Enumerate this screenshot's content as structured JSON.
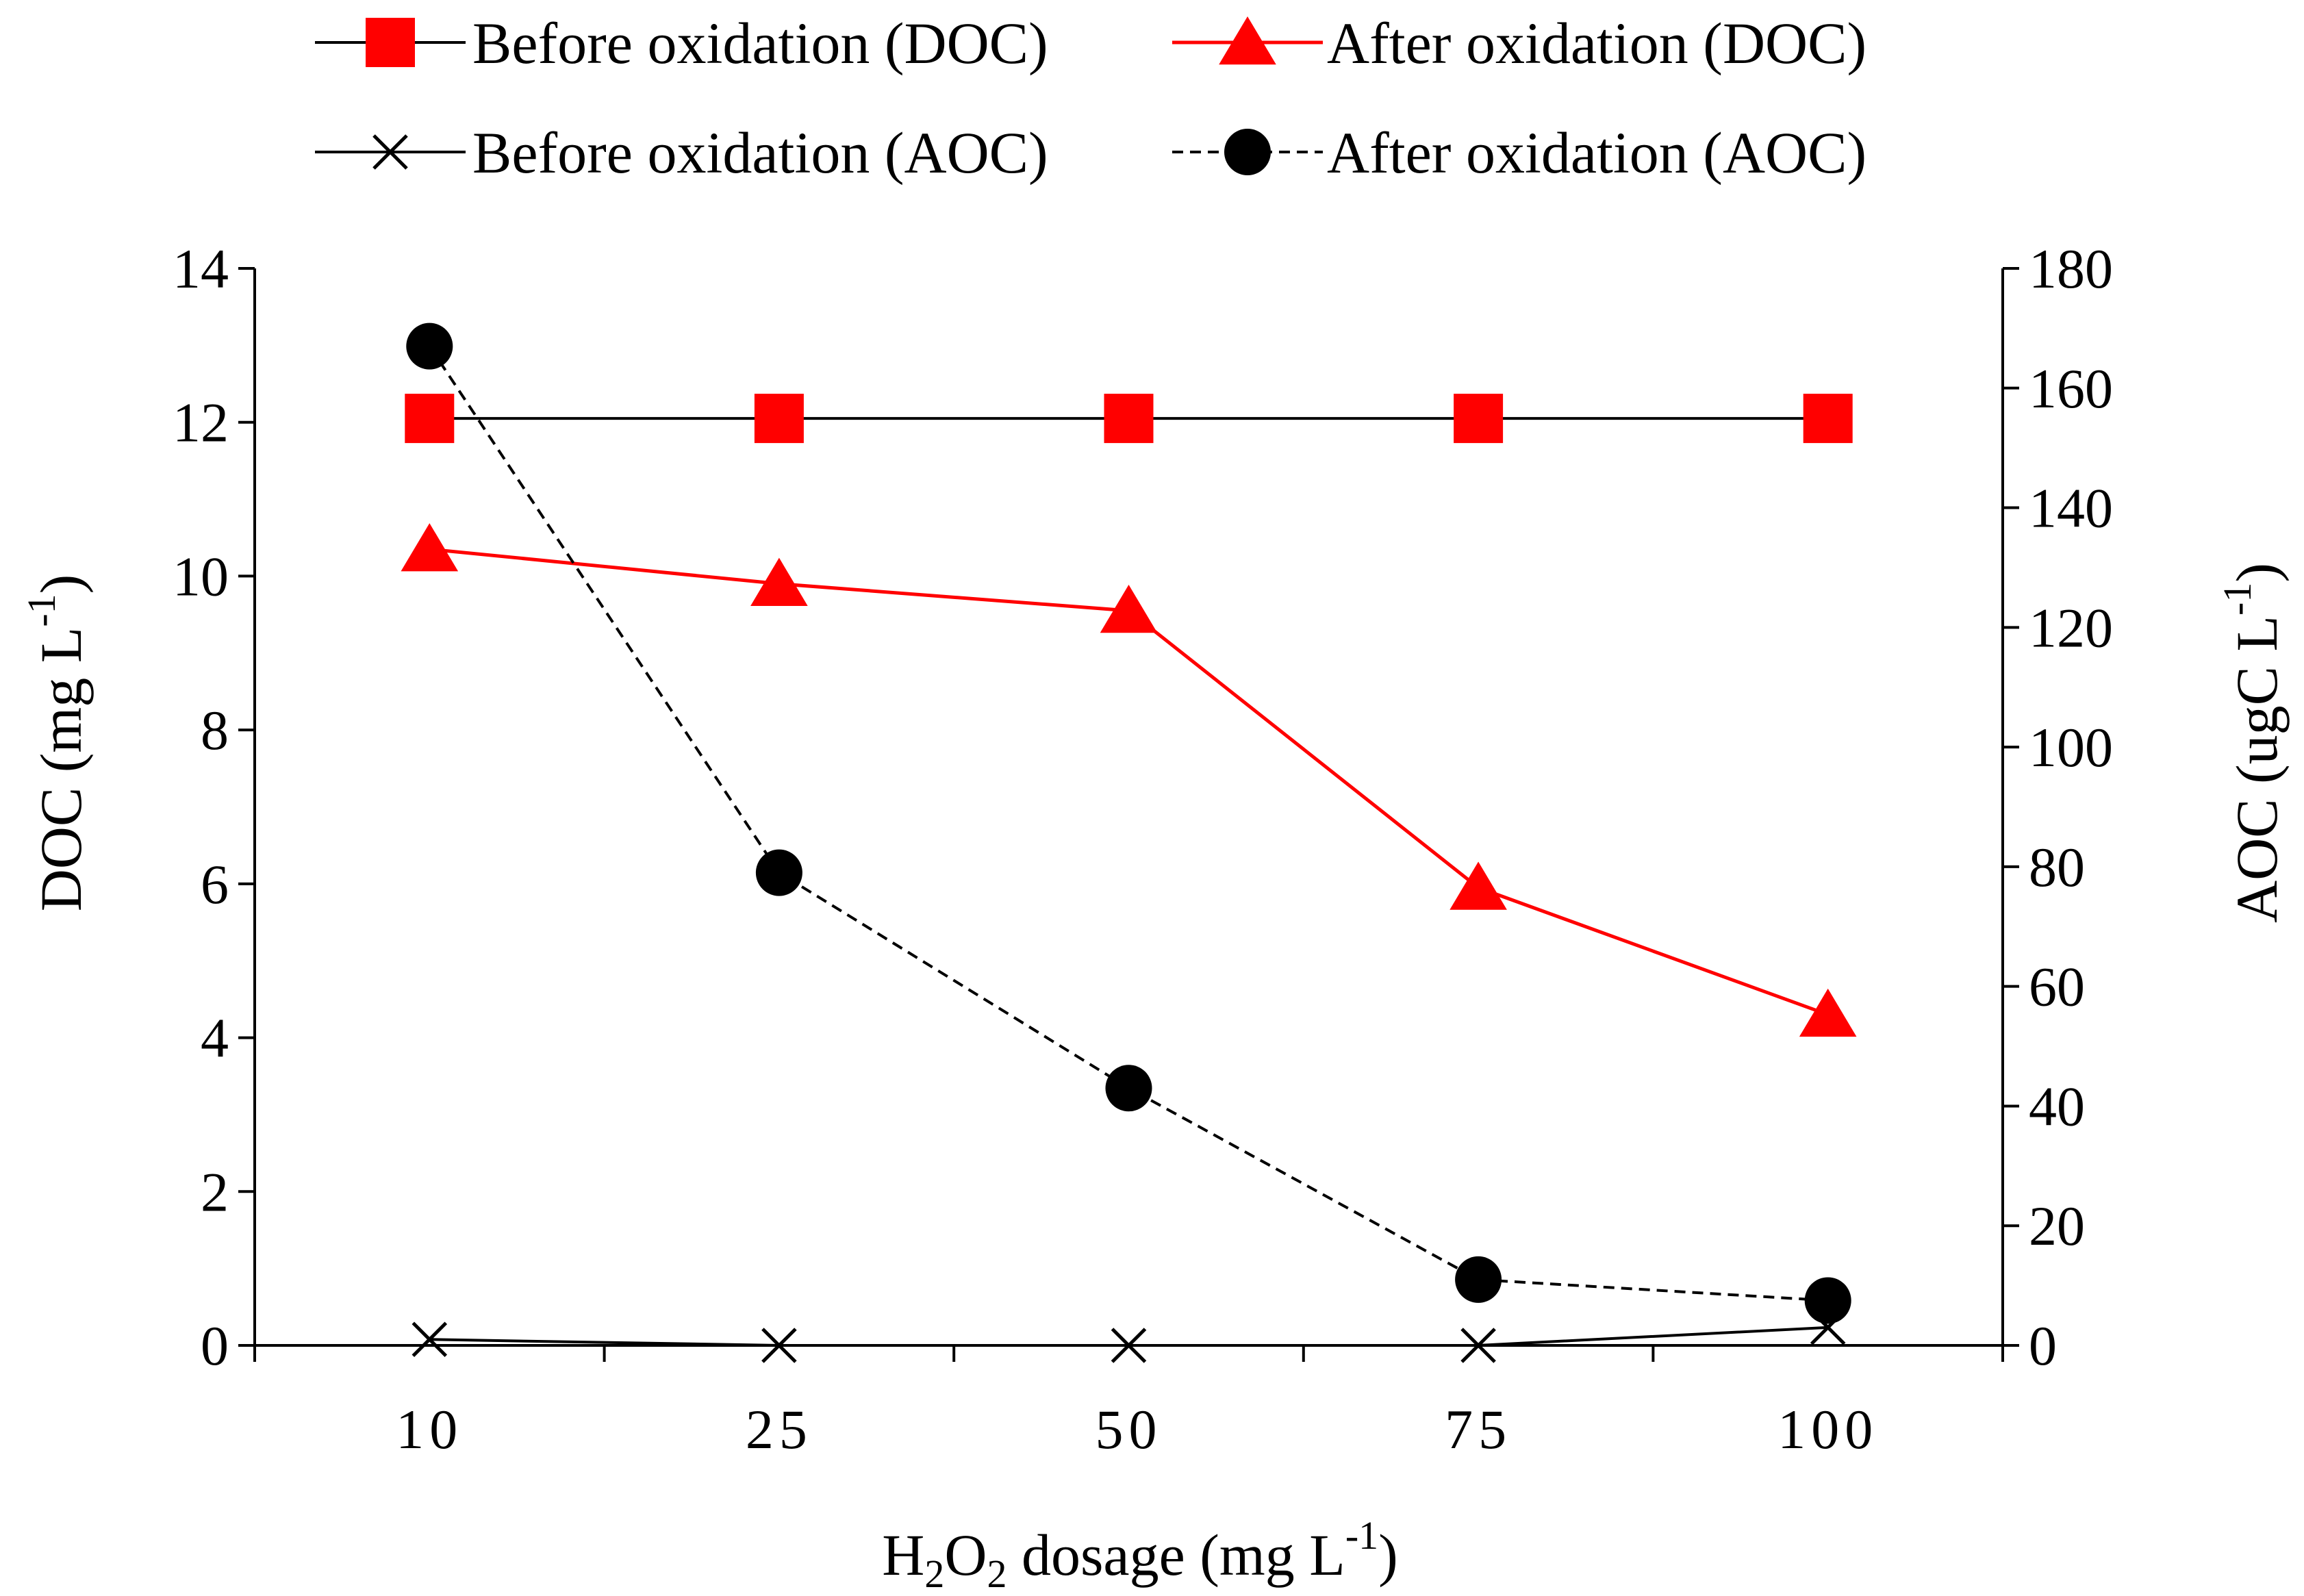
{
  "chart_data": {
    "type": "line",
    "categories": [
      "10",
      "25",
      "50",
      "75",
      "100"
    ],
    "y_left": {
      "ylim": [
        0,
        14
      ],
      "ticks": [
        "0",
        "2",
        "4",
        "6",
        "8",
        "10",
        "12",
        "14"
      ]
    },
    "y_right": {
      "ylim": [
        0,
        180
      ],
      "ticks": [
        "0",
        "20",
        "40",
        "60",
        "80",
        "100",
        "120",
        "140",
        "160",
        "180"
      ]
    },
    "series": [
      {
        "name": "Before oxidation (DOC)",
        "axis": "left",
        "values": [
          12.05,
          12.05,
          12.05,
          12.05,
          12.05
        ],
        "color": "#ff0000",
        "line_color": "#000000",
        "marker": "square",
        "dashed": false
      },
      {
        "name": "After oxidation (DOC)",
        "axis": "left",
        "values": [
          10.35,
          9.9,
          9.55,
          5.95,
          4.3
        ],
        "color": "#ff0000",
        "line_color": "#ff0000",
        "marker": "triangle",
        "dashed": false
      },
      {
        "name": "Before oxidation (AOC)",
        "axis": "right",
        "values": [
          1,
          0,
          0,
          0,
          3
        ],
        "color": "#000000",
        "line_color": "#000000",
        "marker": "x",
        "dashed": false
      },
      {
        "name": "After oxidation (AOC)",
        "axis": "right",
        "values": [
          167,
          79,
          43,
          11,
          7.5
        ],
        "color": "#000000",
        "line_color": "#000000",
        "marker": "circle",
        "dashed": true
      }
    ],
    "legend_position": "top",
    "xlabel": {
      "pre": "H",
      "sub1": "2",
      "mid": "O",
      "sub2": "2",
      "post": " dosage (mg L",
      "sup": "-1",
      "end": ")"
    },
    "ylabel_left": {
      "pre": "DOC (mg L",
      "sup": "-1",
      "end": ")"
    },
    "ylabel_right": {
      "pre": "AOC  (ugC L",
      "sup": "-1",
      "end": ")"
    }
  }
}
